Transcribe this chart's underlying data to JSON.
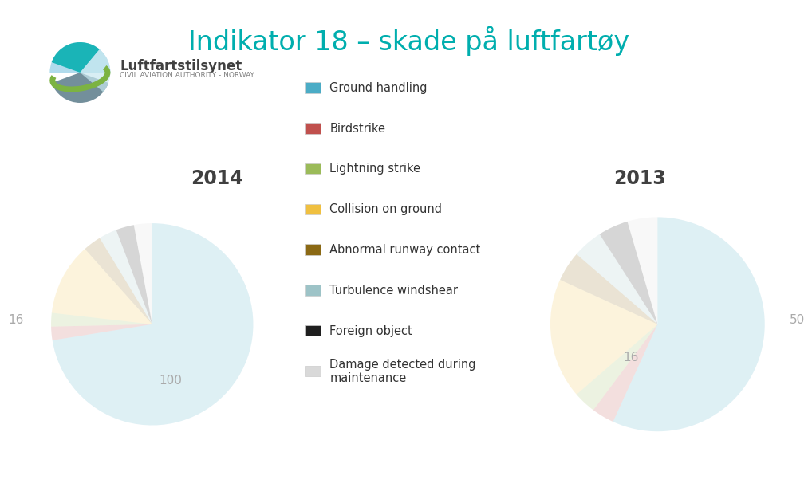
{
  "title": "Indikator 18 – skade på luftfartøy",
  "title_color": "#00AEAE",
  "year_left": "2014",
  "year_right": "2013",
  "year_color": "#404040",
  "background_color": "#ffffff",
  "categories": [
    "Ground handling",
    "Birdstrike",
    "Lightning strike",
    "Collision on ground",
    "Abnormal runway contact",
    "Turbulence windshear",
    "Foreign object",
    "Damage detected during\nmaintenance"
  ],
  "colors": [
    "#4BACC6",
    "#C0504D",
    "#9BBB59",
    "#F0C040",
    "#8B6914",
    "#9DC3C7",
    "#1F1F1F",
    "#D9D9D9"
  ],
  "values_2014": [
    100,
    3,
    3,
    16,
    4,
    4,
    4,
    4
  ],
  "values_2013": [
    50,
    3,
    3,
    16,
    4,
    4,
    4,
    4
  ],
  "pie_alpha": 0.18,
  "logo_text": "Luftfartstilsynet",
  "logo_subtext": "CIVIL AVIATION AUTHORITY - NORWAY"
}
